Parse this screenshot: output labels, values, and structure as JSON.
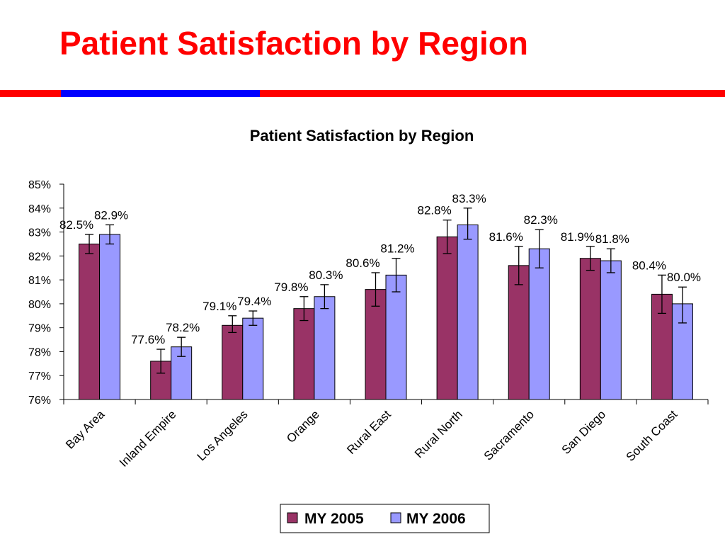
{
  "slide": {
    "title": "Patient Satisfaction by Region"
  },
  "colors": {
    "title": "#ff0000",
    "stripe_red": "#ff0000",
    "stripe_blue": "#0000ff",
    "series_2005": "#993366",
    "series_2006": "#9999ff"
  },
  "chart_data": {
    "type": "bar",
    "title": "Patient Satisfaction by Region",
    "categories": [
      "Bay Area",
      "Inland Empire",
      "Los Angeles",
      "Orange",
      "Rural East",
      "Rural North",
      "Sacramento",
      "San Diego",
      "South Coast"
    ],
    "series": [
      {
        "name": "MY 2005",
        "values": [
          82.5,
          77.6,
          79.1,
          79.8,
          80.6,
          82.8,
          81.6,
          81.9,
          80.4
        ],
        "labels": [
          "82.5%",
          "77.6%",
          "79.1%",
          "79.8%",
          "80.6%",
          "82.8%",
          "81.6%",
          "81.9%",
          "80.4%"
        ],
        "error_low": [
          82.1,
          77.1,
          78.8,
          79.3,
          79.9,
          82.1,
          80.8,
          81.4,
          79.6
        ],
        "error_high": [
          82.9,
          78.1,
          79.5,
          80.3,
          81.3,
          83.5,
          82.4,
          82.4,
          81.2
        ]
      },
      {
        "name": "MY 2006",
        "values": [
          82.9,
          78.2,
          79.4,
          80.3,
          81.2,
          83.3,
          82.3,
          81.8,
          80.0
        ],
        "labels": [
          "82.9%",
          "78.2%",
          "79.4%",
          "80.3%",
          "81.2%",
          "83.3%",
          "82.3%",
          "81.8%",
          "80.0%"
        ],
        "error_low": [
          82.5,
          77.8,
          79.1,
          79.8,
          80.5,
          82.7,
          81.5,
          81.3,
          79.2
        ],
        "error_high": [
          83.3,
          78.6,
          79.7,
          80.8,
          81.9,
          84.0,
          83.1,
          82.3,
          80.7
        ]
      }
    ],
    "ylim": [
      76,
      85
    ],
    "yticks": [
      "76%",
      "77%",
      "78%",
      "79%",
      "80%",
      "81%",
      "82%",
      "83%",
      "84%",
      "85%"
    ],
    "xlabel": "",
    "ylabel": "",
    "grid": false,
    "legend": {
      "position": "bottom-center"
    }
  }
}
